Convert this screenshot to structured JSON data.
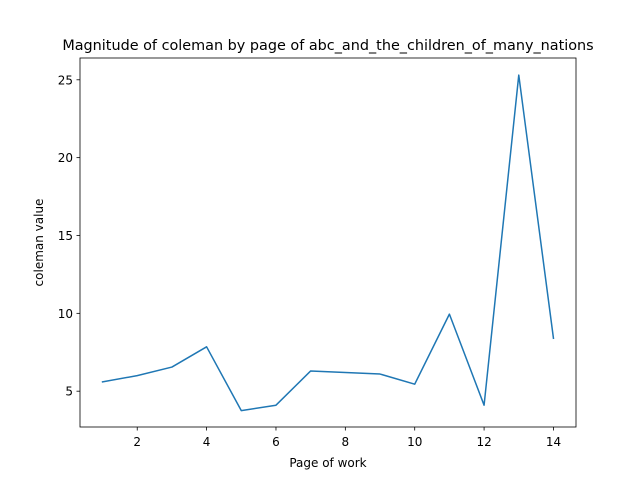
{
  "chart_data": {
    "type": "line",
    "title": "Magnitude of coleman by page of abc_and_the_children_of_many_nations",
    "xlabel": "Page of work",
    "ylabel": "coleman value",
    "xlim": [
      0.35,
      14.65
    ],
    "ylim": [
      2.7,
      26.4
    ],
    "xticks": [
      2,
      4,
      6,
      8,
      10,
      12,
      14
    ],
    "yticks": [
      5,
      10,
      15,
      20,
      25
    ],
    "grid": false,
    "legend": "none",
    "series": [
      {
        "color": "#1f77b4",
        "x": [
          1,
          2,
          3,
          4,
          5,
          6,
          7,
          8,
          9,
          10,
          11,
          12,
          13,
          14
        ],
        "y": [
          5.6,
          6.0,
          6.55,
          7.85,
          3.75,
          4.1,
          6.3,
          6.2,
          6.1,
          5.45,
          9.95,
          4.1,
          25.3,
          8.4
        ]
      }
    ]
  }
}
